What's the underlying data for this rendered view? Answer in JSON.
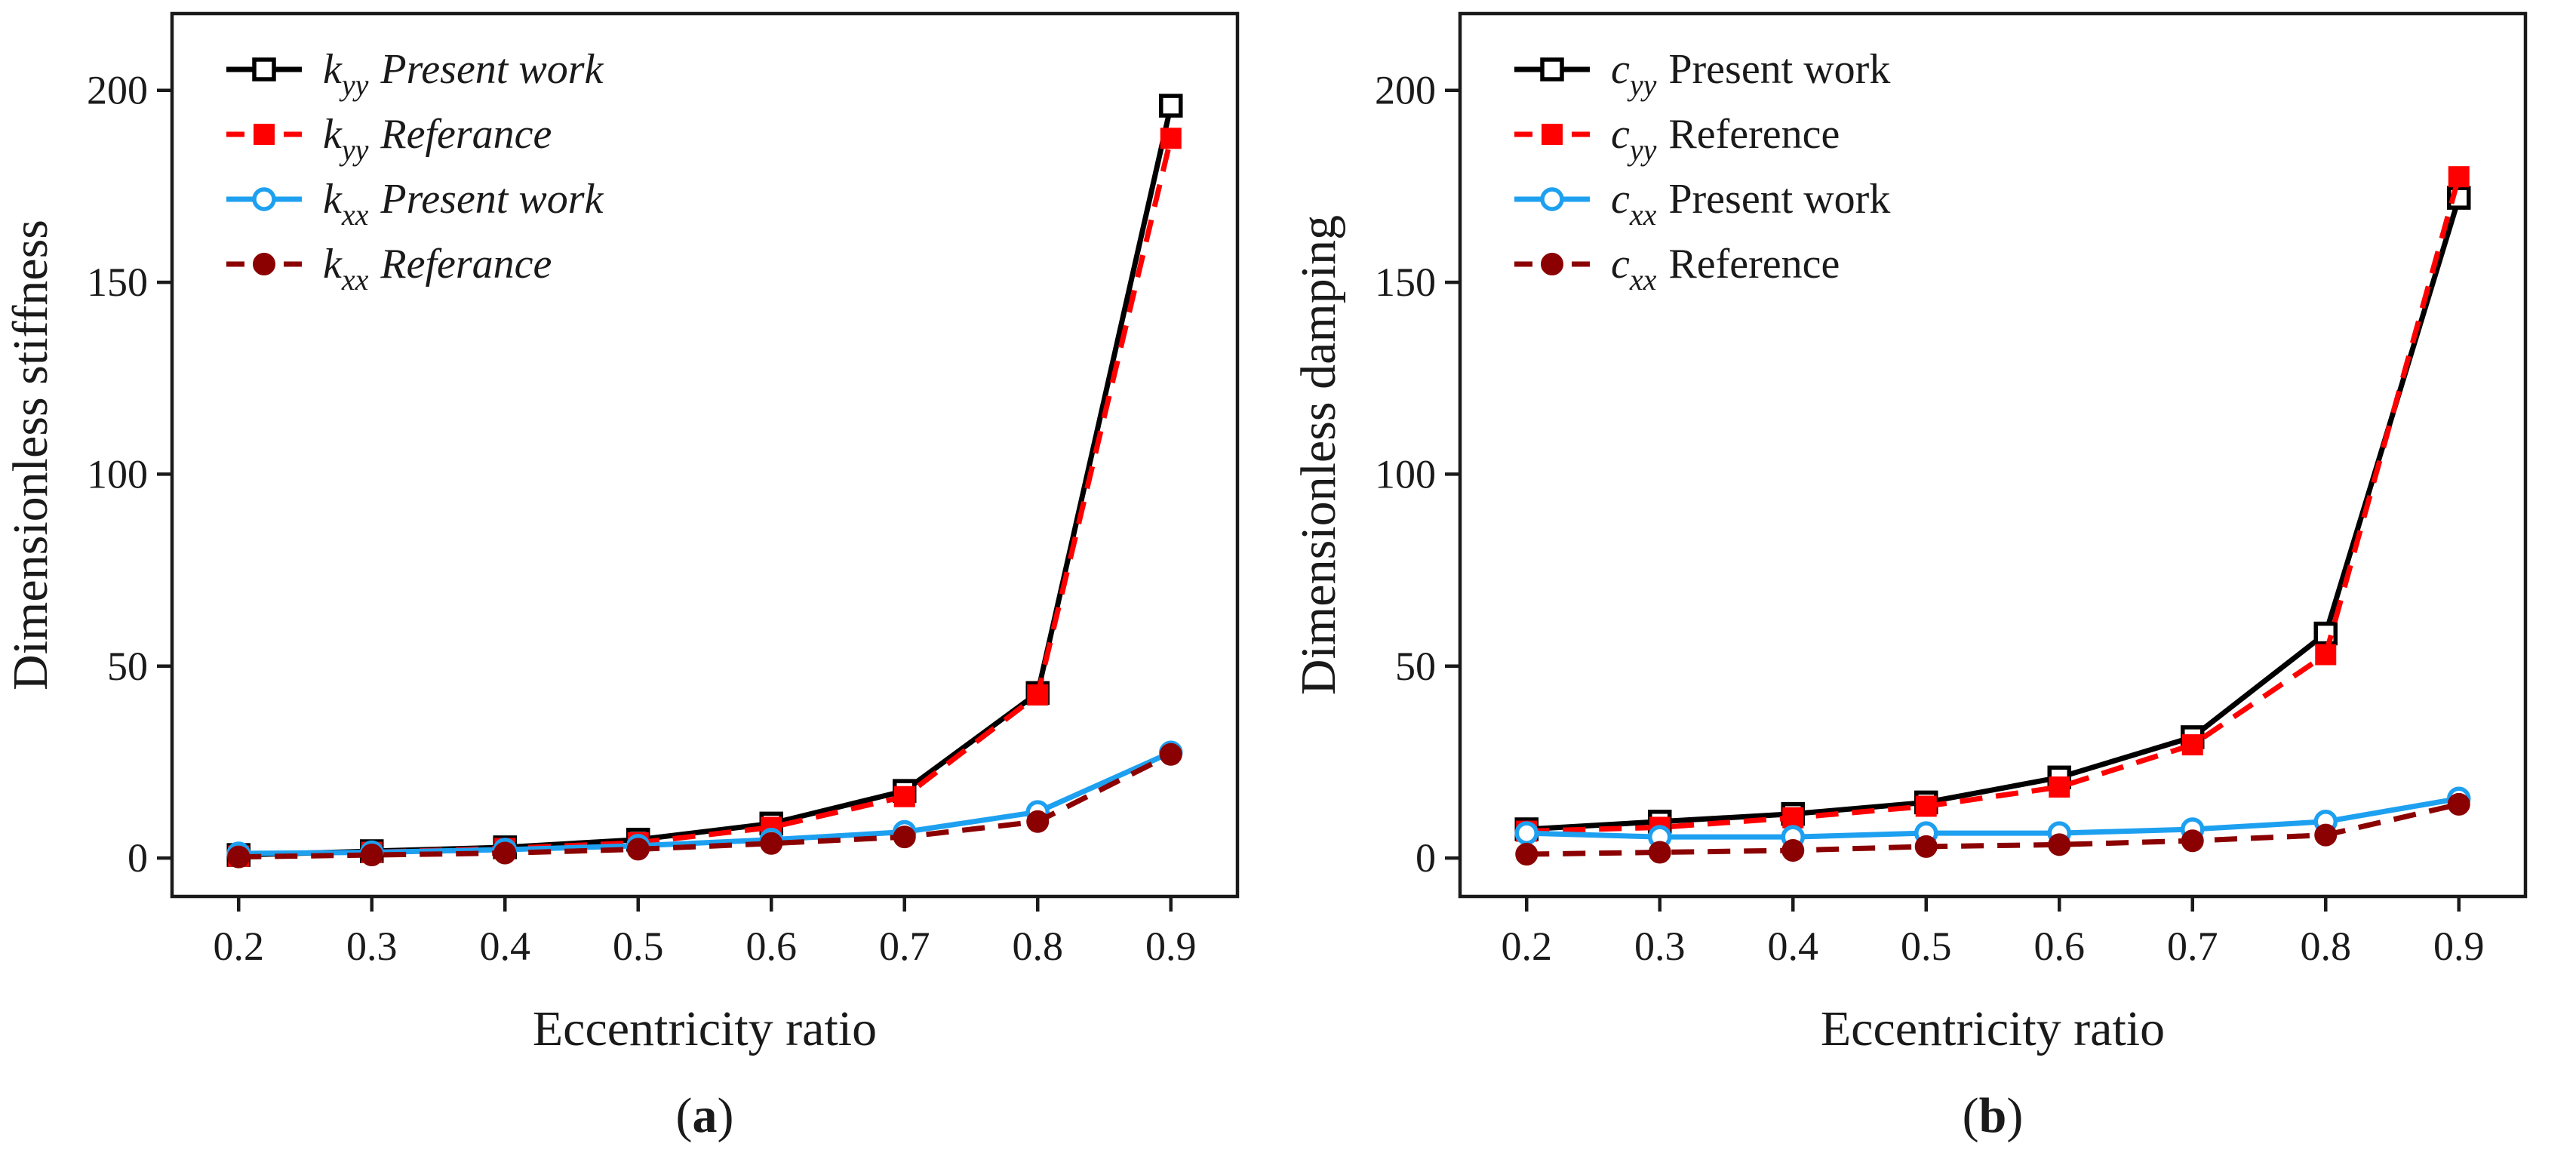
{
  "chart_data": [
    {
      "type": "line",
      "panel_label": "a",
      "xlabel": "Eccentricity ratio",
      "ylabel": "Dimensionless stiffness",
      "xlim": [
        0.15,
        0.95
      ],
      "ylim": [
        -10,
        220
      ],
      "xticks": [
        "0.2",
        "0.3",
        "0.4",
        "0.5",
        "0.6",
        "0.7",
        "0.8",
        "0.9"
      ],
      "yticks": [
        "0",
        "50",
        "100",
        "150",
        "200"
      ],
      "legend_position": "top-left",
      "legend_italic": true,
      "x": [
        0.2,
        0.3,
        0.4,
        0.5,
        0.6,
        0.7,
        0.8,
        0.9
      ],
      "series": [
        {
          "symbol": "k",
          "subscript": "yy",
          "name": "Present work",
          "color": "#000000",
          "dash": "solid",
          "marker": "open-square",
          "values": [
            0.8,
            1.8,
            2.8,
            4.8,
            9.0,
            17.5,
            43.0,
            196.0
          ]
        },
        {
          "symbol": "k",
          "subscript": "yy",
          "name": "Referance",
          "color": "#ff0000",
          "dash": "dashed",
          "marker": "filled-square",
          "values": [
            0.5,
            1.5,
            2.5,
            4.0,
            8.0,
            16.0,
            42.5,
            187.5
          ]
        },
        {
          "symbol": "k",
          "subscript": "xx",
          "name": "Present work",
          "color": "#1ea0f0",
          "dash": "solid",
          "marker": "open-circle",
          "values": [
            1.2,
            1.5,
            2.2,
            3.2,
            4.8,
            6.8,
            12.0,
            27.5
          ]
        },
        {
          "symbol": "k",
          "subscript": "xx",
          "name": "Referance",
          "color": "#8b0000",
          "dash": "dashed",
          "marker": "filled-circle",
          "values": [
            0.3,
            0.8,
            1.3,
            2.3,
            3.8,
            5.5,
            9.5,
            27.0
          ]
        }
      ]
    },
    {
      "type": "line",
      "panel_label": "b",
      "xlabel": "Eccentricity ratio",
      "ylabel": "Dimensionless damping",
      "xlim": [
        0.15,
        0.95
      ],
      "ylim": [
        -10,
        220
      ],
      "xticks": [
        "0.2",
        "0.3",
        "0.4",
        "0.5",
        "0.6",
        "0.7",
        "0.8",
        "0.9"
      ],
      "yticks": [
        "0",
        "50",
        "100",
        "150",
        "200"
      ],
      "legend_position": "top-left",
      "legend_italic": false,
      "x": [
        0.2,
        0.3,
        0.4,
        0.5,
        0.6,
        0.7,
        0.8,
        0.9
      ],
      "series": [
        {
          "symbol": "c",
          "subscript": "yy",
          "name": "Present work",
          "color": "#000000",
          "dash": "solid",
          "marker": "open-square",
          "values": [
            7.5,
            9.5,
            11.5,
            14.5,
            21.0,
            31.5,
            58.5,
            172.0
          ]
        },
        {
          "symbol": "c",
          "subscript": "yy",
          "name": "Reference",
          "color": "#ff0000",
          "dash": "dashed",
          "marker": "filled-square",
          "values": [
            7.0,
            8.0,
            10.5,
            13.5,
            18.5,
            29.5,
            53.0,
            177.5
          ]
        },
        {
          "symbol": "c",
          "subscript": "xx",
          "name": "Present work",
          "color": "#1ea0f0",
          "dash": "solid",
          "marker": "open-circle",
          "values": [
            6.5,
            5.5,
            5.5,
            6.5,
            6.5,
            7.5,
            9.5,
            15.5
          ]
        },
        {
          "symbol": "c",
          "subscript": "xx",
          "name": "Reference",
          "color": "#8b0000",
          "dash": "dashed",
          "marker": "filled-circle",
          "values": [
            1.0,
            1.5,
            2.0,
            3.0,
            3.5,
            4.5,
            6.0,
            14.0
          ]
        }
      ]
    }
  ]
}
